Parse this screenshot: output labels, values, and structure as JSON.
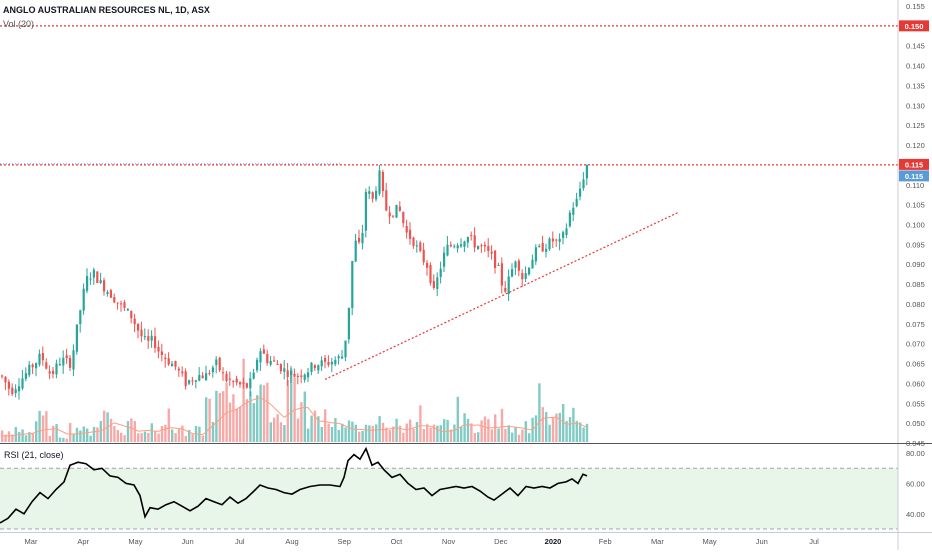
{
  "header": {
    "title": "ANGLO AUSTRALIAN RESOURCES NL, 1D, ASX",
    "volume_label": "Vol (20)"
  },
  "rsi": {
    "label": "RSI (21, close)",
    "ticks": [
      "80.00",
      "60.00",
      "40.00"
    ],
    "upper_band": 70,
    "lower_band": 30
  },
  "price_badges": {
    "resistance_150": "0.150",
    "resistance_115": "0.115",
    "last_price": "0.115"
  },
  "colors": {
    "up": "#26a69a",
    "down": "#ef5350",
    "vol_up": "#80cbc4",
    "vol_down": "#f7a9a7",
    "ma": "#ff9e80",
    "resistance": "#e53935",
    "last": "#5b9bd5",
    "rsi_line": "#000000",
    "rsi_band": "#e8f5e9"
  },
  "chart_data": [
    {
      "type": "candlestick",
      "title": "ANGLO AUSTRALIAN RESOURCES NL, 1D, ASX",
      "x_ticks": [
        "Mar",
        "Apr",
        "May",
        "Jun",
        "Jul",
        "Aug",
        "Sep",
        "Oct",
        "Nov",
        "Dec",
        "2020",
        "Feb",
        "Mar",
        "May",
        "Jun",
        "Jul"
      ],
      "y_ticks": [
        "0.155",
        "0.150",
        "0.145",
        "0.140",
        "0.135",
        "0.130",
        "0.125",
        "0.120",
        "0.115",
        "0.110",
        "0.105",
        "0.100",
        "0.095",
        "0.090",
        "0.085",
        "0.080",
        "0.075",
        "0.070",
        "0.065",
        "0.060",
        "0.055",
        "0.050",
        "0.045"
      ],
      "ylim": [
        0.045,
        0.156
      ],
      "close_path": [
        [
          0,
          0.062
        ],
        [
          10,
          0.058
        ],
        [
          20,
          0.061
        ],
        [
          30,
          0.064
        ],
        [
          40,
          0.067
        ],
        [
          50,
          0.062
        ],
        [
          60,
          0.066
        ],
        [
          70,
          0.065
        ],
        [
          78,
          0.077
        ],
        [
          85,
          0.086
        ],
        [
          92,
          0.088
        ],
        [
          100,
          0.085
        ],
        [
          108,
          0.083
        ],
        [
          118,
          0.08
        ],
        [
          130,
          0.077
        ],
        [
          140,
          0.072
        ],
        [
          146,
          0.07
        ],
        [
          152,
          0.071
        ],
        [
          158,
          0.068
        ],
        [
          166,
          0.066
        ],
        [
          175,
          0.064
        ],
        [
          185,
          0.06
        ],
        [
          195,
          0.062
        ],
        [
          205,
          0.062
        ],
        [
          215,
          0.065
        ],
        [
          225,
          0.061
        ],
        [
          235,
          0.06
        ],
        [
          245,
          0.059
        ],
        [
          252,
          0.061
        ],
        [
          258,
          0.069
        ],
        [
          266,
          0.066
        ],
        [
          275,
          0.065
        ],
        [
          285,
          0.063
        ],
        [
          295,
          0.062
        ],
        [
          305,
          0.063
        ],
        [
          315,
          0.065
        ],
        [
          325,
          0.065
        ],
        [
          335,
          0.066
        ],
        [
          342,
          0.067
        ],
        [
          347,
          0.076
        ],
        [
          350,
          0.089
        ],
        [
          355,
          0.096
        ],
        [
          360,
          0.094
        ],
        [
          365,
          0.109
        ],
        [
          372,
          0.106
        ],
        [
          378,
          0.113
        ],
        [
          384,
          0.104
        ],
        [
          390,
          0.103
        ],
        [
          398,
          0.104
        ],
        [
          405,
          0.098
        ],
        [
          412,
          0.096
        ],
        [
          420,
          0.092
        ],
        [
          428,
          0.089
        ],
        [
          432,
          0.082
        ],
        [
          438,
          0.088
        ],
        [
          445,
          0.094
        ],
        [
          452,
          0.095
        ],
        [
          460,
          0.096
        ],
        [
          466,
          0.097
        ],
        [
          474,
          0.095
        ],
        [
          482,
          0.094
        ],
        [
          490,
          0.092
        ],
        [
          497,
          0.089
        ],
        [
          503,
          0.083
        ],
        [
          509,
          0.087
        ],
        [
          515,
          0.092
        ],
        [
          522,
          0.086
        ],
        [
          528,
          0.09
        ],
        [
          534,
          0.093
        ],
        [
          540,
          0.094
        ],
        [
          546,
          0.095
        ],
        [
          552,
          0.096
        ],
        [
          558,
          0.095
        ],
        [
          564,
          0.098
        ],
        [
          570,
          0.104
        ],
        [
          576,
          0.106
        ],
        [
          581,
          0.111
        ],
        [
          586,
          0.115
        ]
      ],
      "annotations": [
        {
          "type": "horizontal_line",
          "price": 0.15,
          "style": "dotted",
          "color": "#e53935"
        },
        {
          "type": "horizontal_line",
          "price": 0.115,
          "style": "dotted",
          "color": "#e53935"
        },
        {
          "type": "trend_line",
          "from": [
            325,
            0.061
          ],
          "to": [
            678,
            0.103
          ],
          "style": "dotted",
          "color": "#e53935"
        }
      ]
    },
    {
      "type": "bar",
      "title": "Vol (20)",
      "relative_heights": [
        0.12,
        0.2,
        0.15,
        0.32,
        0.18,
        0.1,
        0.22,
        0.16,
        0.28,
        0.45,
        0.14,
        0.3,
        0.18,
        0.25,
        0.34,
        0.2,
        0.12,
        0.16,
        0.55,
        0.62,
        0.7,
        0.9,
        0.85,
        0.6,
        0.4,
        0.95,
        0.52,
        0.35,
        0.44,
        0.3,
        0.22,
        0.28,
        0.18,
        0.3,
        0.25,
        0.22,
        0.4,
        0.2,
        0.18,
        0.26,
        0.45,
        0.24,
        0.3,
        0.28,
        0.35,
        0.22,
        0.26,
        0.75,
        0.3,
        0.42,
        0.34,
        0.2
      ]
    },
    {
      "type": "line",
      "title": "RSI (21, close)",
      "ylim": [
        28,
        86
      ],
      "points": [
        [
          0,
          34
        ],
        [
          8,
          37
        ],
        [
          16,
          43
        ],
        [
          24,
          40
        ],
        [
          32,
          48
        ],
        [
          40,
          54
        ],
        [
          48,
          50
        ],
        [
          56,
          56
        ],
        [
          64,
          61
        ],
        [
          70,
          72
        ],
        [
          78,
          74
        ],
        [
          86,
          73
        ],
        [
          94,
          69
        ],
        [
          102,
          70
        ],
        [
          110,
          65
        ],
        [
          118,
          64
        ],
        [
          126,
          60
        ],
        [
          134,
          59
        ],
        [
          140,
          52
        ],
        [
          145,
          38
        ],
        [
          150,
          44
        ],
        [
          158,
          43
        ],
        [
          166,
          46
        ],
        [
          174,
          48
        ],
        [
          182,
          45
        ],
        [
          190,
          42
        ],
        [
          198,
          45
        ],
        [
          206,
          50
        ],
        [
          214,
          48
        ],
        [
          222,
          46
        ],
        [
          230,
          51
        ],
        [
          238,
          47
        ],
        [
          246,
          50
        ],
        [
          254,
          55
        ],
        [
          260,
          59
        ],
        [
          268,
          57
        ],
        [
          276,
          56
        ],
        [
          284,
          54
        ],
        [
          292,
          53
        ],
        [
          300,
          56
        ],
        [
          310,
          58
        ],
        [
          320,
          59
        ],
        [
          330,
          59
        ],
        [
          340,
          58
        ],
        [
          344,
          64
        ],
        [
          348,
          75
        ],
        [
          354,
          79
        ],
        [
          360,
          76
        ],
        [
          366,
          83
        ],
        [
          372,
          72
        ],
        [
          378,
          74
        ],
        [
          384,
          69
        ],
        [
          392,
          64
        ],
        [
          400,
          66
        ],
        [
          408,
          60
        ],
        [
          416,
          56
        ],
        [
          424,
          57
        ],
        [
          432,
          52
        ],
        [
          440,
          56
        ],
        [
          448,
          57
        ],
        [
          456,
          58
        ],
        [
          464,
          57
        ],
        [
          472,
          58
        ],
        [
          480,
          55
        ],
        [
          488,
          51
        ],
        [
          494,
          49
        ],
        [
          502,
          53
        ],
        [
          510,
          57
        ],
        [
          518,
          52
        ],
        [
          526,
          58
        ],
        [
          534,
          57
        ],
        [
          542,
          58
        ],
        [
          550,
          57
        ],
        [
          558,
          60
        ],
        [
          566,
          61
        ],
        [
          572,
          63
        ],
        [
          578,
          60
        ],
        [
          583,
          66
        ],
        [
          587,
          65
        ]
      ]
    }
  ]
}
